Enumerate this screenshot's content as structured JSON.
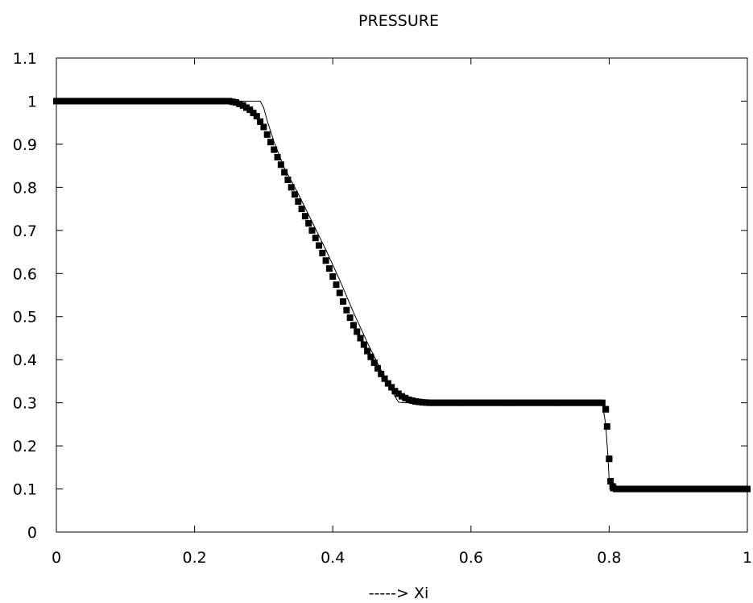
{
  "chart_data": {
    "type": "line",
    "title": "PRESSURE",
    "xlabel": "-----> Xi",
    "ylabel": "",
    "xlim": [
      0,
      1
    ],
    "ylim": [
      0,
      1.1
    ],
    "x_ticks": [
      "0",
      "0.2",
      "0.4",
      "0.6",
      "0.8",
      "1"
    ],
    "y_ticks": [
      "0",
      "0.1",
      "0.2",
      "0.3",
      "0.4",
      "0.5",
      "0.6",
      "0.7",
      "0.8",
      "0.9",
      "1",
      "1.1"
    ],
    "grid": false,
    "legend": "none",
    "series": [
      {
        "style": "thin solid line",
        "color": "#000000",
        "points": [
          [
            0.0,
            1.0
          ],
          [
            0.25,
            1.0
          ],
          [
            0.295,
            1.0
          ],
          [
            0.3,
            0.985
          ],
          [
            0.305,
            0.955
          ],
          [
            0.315,
            0.905
          ],
          [
            0.33,
            0.845
          ],
          [
            0.35,
            0.785
          ],
          [
            0.37,
            0.72
          ],
          [
            0.39,
            0.655
          ],
          [
            0.41,
            0.585
          ],
          [
            0.43,
            0.51
          ],
          [
            0.45,
            0.44
          ],
          [
            0.47,
            0.375
          ],
          [
            0.48,
            0.345
          ],
          [
            0.49,
            0.315
          ],
          [
            0.495,
            0.302
          ],
          [
            0.5,
            0.3
          ],
          [
            0.79,
            0.3
          ],
          [
            0.795,
            0.25
          ],
          [
            0.798,
            0.18
          ],
          [
            0.8,
            0.12
          ],
          [
            0.802,
            0.1
          ],
          [
            1.0,
            0.1
          ]
        ]
      },
      {
        "style": "filled square markers",
        "color": "#000000",
        "marker": "square",
        "points": [
          [
            0.0,
            1.0
          ],
          [
            0.25,
            1.0
          ],
          [
            0.26,
            0.997
          ],
          [
            0.27,
            0.99
          ],
          [
            0.28,
            0.98
          ],
          [
            0.29,
            0.965
          ],
          [
            0.3,
            0.94
          ],
          [
            0.31,
            0.905
          ],
          [
            0.32,
            0.87
          ],
          [
            0.33,
            0.835
          ],
          [
            0.34,
            0.8
          ],
          [
            0.35,
            0.767
          ],
          [
            0.36,
            0.733
          ],
          [
            0.37,
            0.7
          ],
          [
            0.38,
            0.665
          ],
          [
            0.39,
            0.63
          ],
          [
            0.4,
            0.593
          ],
          [
            0.41,
            0.555
          ],
          [
            0.42,
            0.515
          ],
          [
            0.43,
            0.48
          ],
          [
            0.44,
            0.45
          ],
          [
            0.45,
            0.42
          ],
          [
            0.46,
            0.393
          ],
          [
            0.47,
            0.367
          ],
          [
            0.48,
            0.345
          ],
          [
            0.49,
            0.327
          ],
          [
            0.5,
            0.315
          ],
          [
            0.51,
            0.307
          ],
          [
            0.52,
            0.303
          ],
          [
            0.53,
            0.301
          ],
          [
            0.54,
            0.3
          ],
          [
            0.79,
            0.3
          ],
          [
            0.795,
            0.285
          ],
          [
            0.797,
            0.245
          ],
          [
            0.8,
            0.17
          ],
          [
            0.802,
            0.118
          ],
          [
            0.806,
            0.102
          ],
          [
            0.81,
            0.1
          ],
          [
            1.0,
            0.1
          ]
        ]
      }
    ]
  }
}
